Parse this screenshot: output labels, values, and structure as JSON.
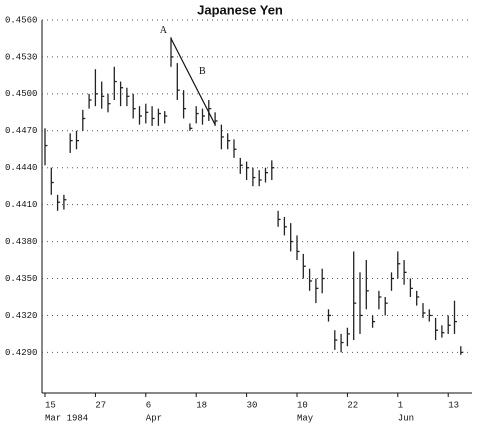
{
  "chart_data": {
    "type": "hlc",
    "title": "Japanese Yen",
    "categories": [
      "15",
      null,
      null,
      null,
      null,
      null,
      null,
      null,
      "27",
      null,
      null,
      null,
      null,
      null,
      null,
      null,
      "6",
      null,
      null,
      null,
      null,
      null,
      null,
      null,
      "18",
      null,
      null,
      null,
      null,
      null,
      null,
      null,
      "30",
      null,
      null,
      null,
      null,
      null,
      null,
      null,
      "10",
      null,
      null,
      null,
      null,
      null,
      null,
      null,
      "22",
      null,
      null,
      null,
      null,
      null,
      null,
      null,
      "1",
      null,
      null,
      null,
      null,
      null,
      null,
      null,
      "13",
      null,
      null
    ],
    "month_labels": [
      "Mar 1984",
      null,
      null,
      null,
      null,
      null,
      null,
      null,
      null,
      null,
      null,
      null,
      null,
      null,
      null,
      null,
      "Apr",
      null,
      null,
      null,
      null,
      null,
      null,
      null,
      null,
      null,
      null,
      null,
      null,
      null,
      null,
      null,
      null,
      null,
      null,
      null,
      null,
      null,
      null,
      null,
      "May",
      null,
      null,
      null,
      null,
      null,
      null,
      null,
      null,
      null,
      null,
      null,
      null,
      null,
      null,
      null,
      "Jun",
      null,
      null,
      null,
      null,
      null,
      null,
      null,
      null,
      null,
      null
    ],
    "high": [
      0.4472,
      0.444,
      0.4418,
      0.4418,
      0.4468,
      0.447,
      0.4487,
      0.45,
      0.452,
      0.451,
      0.45,
      0.4522,
      0.451,
      0.4505,
      0.45,
      0.449,
      0.4492,
      0.449,
      0.4488,
      0.4486,
      0.4546,
      0.4525,
      0.4503,
      0.4476,
      0.449,
      0.4488,
      0.4495,
      0.4485,
      0.4475,
      0.4468,
      0.4463,
      0.4448,
      0.4445,
      0.444,
      0.4438,
      0.444,
      0.4446,
      0.4405,
      0.44,
      0.4395,
      0.4385,
      0.437,
      0.4358,
      0.435,
      0.4358,
      0.4325,
      0.4308,
      0.4305,
      0.431,
      0.4372,
      0.4355,
      0.4365,
      0.432,
      0.434,
      0.4335,
      0.4355,
      0.4372,
      0.4365,
      0.435,
      0.434,
      0.433,
      0.4325,
      0.4318,
      0.4312,
      0.432,
      0.4332,
      0.4295
    ],
    "low": [
      0.4442,
      0.4418,
      0.4405,
      0.4406,
      0.4452,
      0.4455,
      0.447,
      0.4488,
      0.449,
      0.4488,
      0.4485,
      0.4495,
      0.449,
      0.449,
      0.448,
      0.4475,
      0.4476,
      0.4474,
      0.4474,
      0.4476,
      0.4522,
      0.4495,
      0.448,
      0.447,
      0.4476,
      0.4475,
      0.4478,
      0.4474,
      0.4455,
      0.4455,
      0.4448,
      0.4435,
      0.443,
      0.4425,
      0.4425,
      0.4428,
      0.443,
      0.4392,
      0.4385,
      0.4372,
      0.4365,
      0.435,
      0.434,
      0.433,
      0.4338,
      0.4315,
      0.4292,
      0.429,
      0.4295,
      0.43,
      0.4305,
      0.4325,
      0.431,
      0.4325,
      0.432,
      0.434,
      0.435,
      0.4345,
      0.4335,
      0.4328,
      0.4318,
      0.4315,
      0.43,
      0.4302,
      0.4305,
      0.4305,
      0.4288
    ],
    "close": [
      0.4458,
      0.4428,
      0.4412,
      0.4414,
      0.4462,
      0.4462,
      0.448,
      0.4495,
      0.45,
      0.4498,
      0.4492,
      0.451,
      0.4505,
      0.4498,
      0.4488,
      0.4482,
      0.4485,
      0.448,
      0.4484,
      0.4482,
      0.453,
      0.4503,
      0.4488,
      0.4472,
      0.4484,
      0.4482,
      0.4488,
      0.4478,
      0.4465,
      0.4462,
      0.4455,
      0.4442,
      0.444,
      0.4432,
      0.443,
      0.4436,
      0.444,
      0.4398,
      0.4392,
      0.438,
      0.4372,
      0.436,
      0.4348,
      0.4342,
      0.435,
      0.432,
      0.43,
      0.4298,
      0.4305,
      0.433,
      0.432,
      0.434,
      0.4315,
      0.4335,
      0.433,
      0.435,
      0.4362,
      0.4355,
      0.4342,
      0.4335,
      0.4322,
      0.432,
      0.4308,
      0.4306,
      0.4312,
      0.4315,
      0.429
    ],
    "color": "#222222",
    "ylim": [
      0.4257,
      0.456
    ],
    "yticks": [
      {
        "value": 0.429,
        "label": "0.4290"
      },
      {
        "value": 0.432,
        "label": "0.4320"
      },
      {
        "value": 0.435,
        "label": "0.4350"
      },
      {
        "value": 0.438,
        "label": "0.4380"
      },
      {
        "value": 0.441,
        "label": "0.4410"
      },
      {
        "value": 0.444,
        "label": "0.4440"
      },
      {
        "value": 0.447,
        "label": "0.4470"
      },
      {
        "value": 0.45,
        "label": "0.4500"
      },
      {
        "value": 0.453,
        "label": "0.4530"
      },
      {
        "value": 0.456,
        "label": "0.4560"
      }
    ],
    "grid": true,
    "trend_line": {
      "start_index": 20,
      "start_value": 0.4545,
      "end_index": 27,
      "end_value": 0.4475,
      "start_label": "A",
      "mid_label": "B"
    }
  }
}
